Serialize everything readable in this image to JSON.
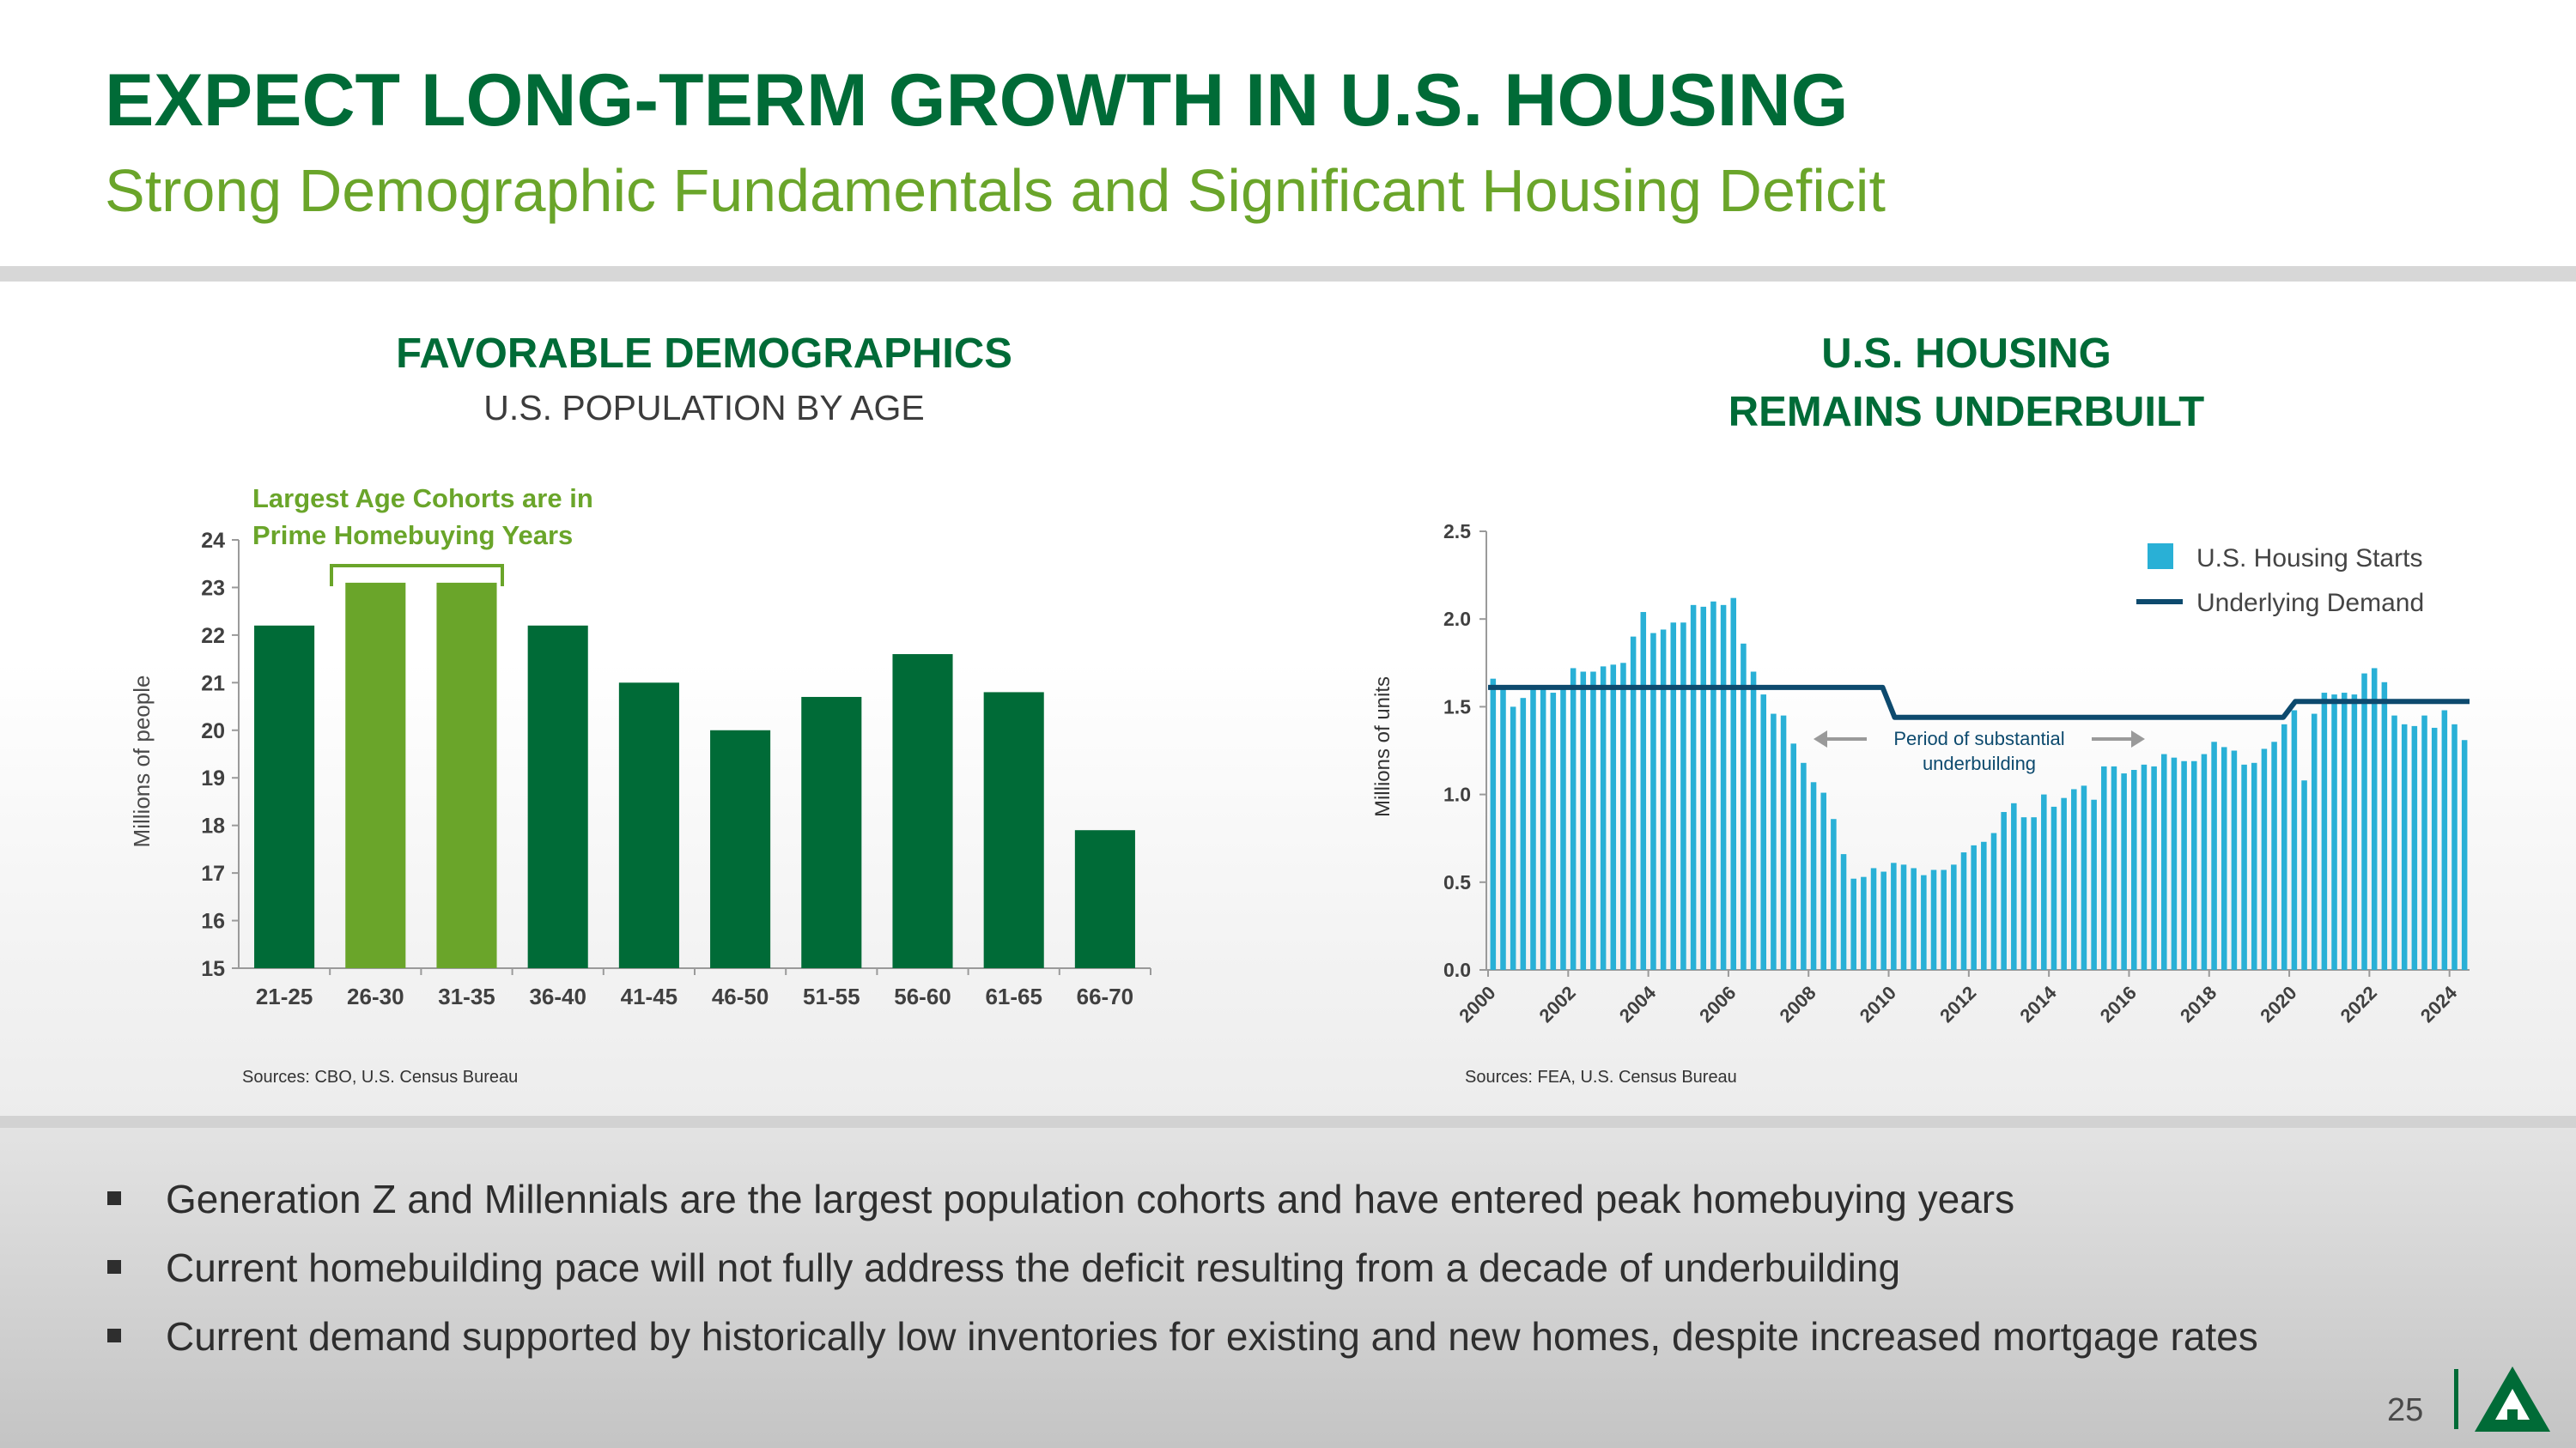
{
  "header": {
    "title": "EXPECT LONG-TERM GROWTH IN U.S. HOUSING",
    "subtitle": "Strong Demographic Fundamentals and Significant Housing Deficit"
  },
  "left_panel": {
    "title": "FAVORABLE DEMOGRAPHICS",
    "subtitle": "U.S. POPULATION BY AGE",
    "source": "Sources: CBO, U.S. Census Bureau"
  },
  "right_panel": {
    "title_line1": "U.S. HOUSING",
    "title_line2": "REMAINS UNDERBUILT",
    "source": "Sources: FEA, U.S. Census Bureau"
  },
  "bullets": [
    "Generation Z and Millennials are the largest population cohorts and have entered peak homebuying years",
    "Current homebuilding pace will not fully address the deficit resulting from a decade of underbuilding",
    "Current demand supported by historically low inventories for existing and new homes, despite increased mortgage rates"
  ],
  "page_number": "25",
  "colors": {
    "dark_green": "#006b37",
    "light_green": "#6aa52a",
    "bar_blue": "#29b0d6",
    "line_navy": "#0d4a6e"
  },
  "chart_data": [
    {
      "type": "bar",
      "title": "FAVORABLE DEMOGRAPHICS",
      "subtitle": "U.S. POPULATION BY AGE",
      "ylabel": "Millions of people",
      "xlabel": "",
      "ylim": [
        15,
        24
      ],
      "yticks": [
        15,
        16,
        17,
        18,
        19,
        20,
        21,
        22,
        23,
        24
      ],
      "categories": [
        "21-25",
        "26-30",
        "31-35",
        "36-40",
        "41-45",
        "46-50",
        "51-55",
        "56-60",
        "61-65",
        "66-70"
      ],
      "values": [
        22.2,
        23.1,
        23.1,
        22.2,
        21.0,
        20.0,
        20.7,
        21.6,
        20.8,
        17.9
      ],
      "highlighted": [
        "26-30",
        "31-35"
      ],
      "annotation_line1": "Largest Age Cohorts are in",
      "annotation_line2": "Prime Homebuying Years"
    },
    {
      "type": "bar",
      "title": "U.S. HOUSING REMAINS UNDERBUILT",
      "ylabel": "Millions of units",
      "xlabel": "",
      "ylim": [
        0,
        2.5
      ],
      "yticks": [
        "0.0",
        "0.5",
        "1.0",
        "1.5",
        "2.0",
        "2.5"
      ],
      "xticks": [
        "2000",
        "2002",
        "2004",
        "2006",
        "2008",
        "2010",
        "2012",
        "2014",
        "2016",
        "2018",
        "2020",
        "2022",
        "2024"
      ],
      "x_start_year": 2000,
      "periods_per_year": 4,
      "series": [
        {
          "name": "U.S. Housing Starts",
          "kind": "bar",
          "values": [
            1.66,
            1.6,
            1.5,
            1.55,
            1.62,
            1.62,
            1.58,
            1.6,
            1.72,
            1.7,
            1.7,
            1.73,
            1.74,
            1.75,
            1.9,
            2.04,
            1.92,
            1.94,
            1.98,
            1.98,
            2.08,
            2.07,
            2.1,
            2.08,
            2.12,
            1.86,
            1.7,
            1.57,
            1.46,
            1.45,
            1.29,
            1.18,
            1.07,
            1.01,
            0.86,
            0.66,
            0.52,
            0.53,
            0.58,
            0.56,
            0.61,
            0.6,
            0.58,
            0.54,
            0.57,
            0.57,
            0.6,
            0.67,
            0.71,
            0.73,
            0.78,
            0.9,
            0.95,
            0.87,
            0.87,
            1.0,
            0.93,
            0.98,
            1.03,
            1.05,
            0.97,
            1.16,
            1.16,
            1.12,
            1.14,
            1.17,
            1.16,
            1.23,
            1.21,
            1.19,
            1.19,
            1.23,
            1.3,
            1.27,
            1.25,
            1.17,
            1.18,
            1.26,
            1.3,
            1.4,
            1.48,
            1.08,
            1.46,
            1.58,
            1.57,
            1.58,
            1.57,
            1.69,
            1.72,
            1.64,
            1.45,
            1.4,
            1.39,
            1.45,
            1.38,
            1.48,
            1.4,
            1.31
          ]
        },
        {
          "name": "Underlying Demand",
          "kind": "step-line",
          "segments": [
            {
              "from": 2000.0,
              "to": 2009.85,
              "value": 1.61
            },
            {
              "from": 2010.15,
              "to": 2019.85,
              "value": 1.44
            },
            {
              "from": 2020.15,
              "to": 2024.5,
              "value": 1.53
            }
          ]
        }
      ],
      "legend": [
        "U.S. Housing Starts",
        "Underlying Demand"
      ],
      "legend_position": "top-right",
      "annotation_line1": "Period of substantial",
      "annotation_line2": "underbuilding"
    }
  ]
}
